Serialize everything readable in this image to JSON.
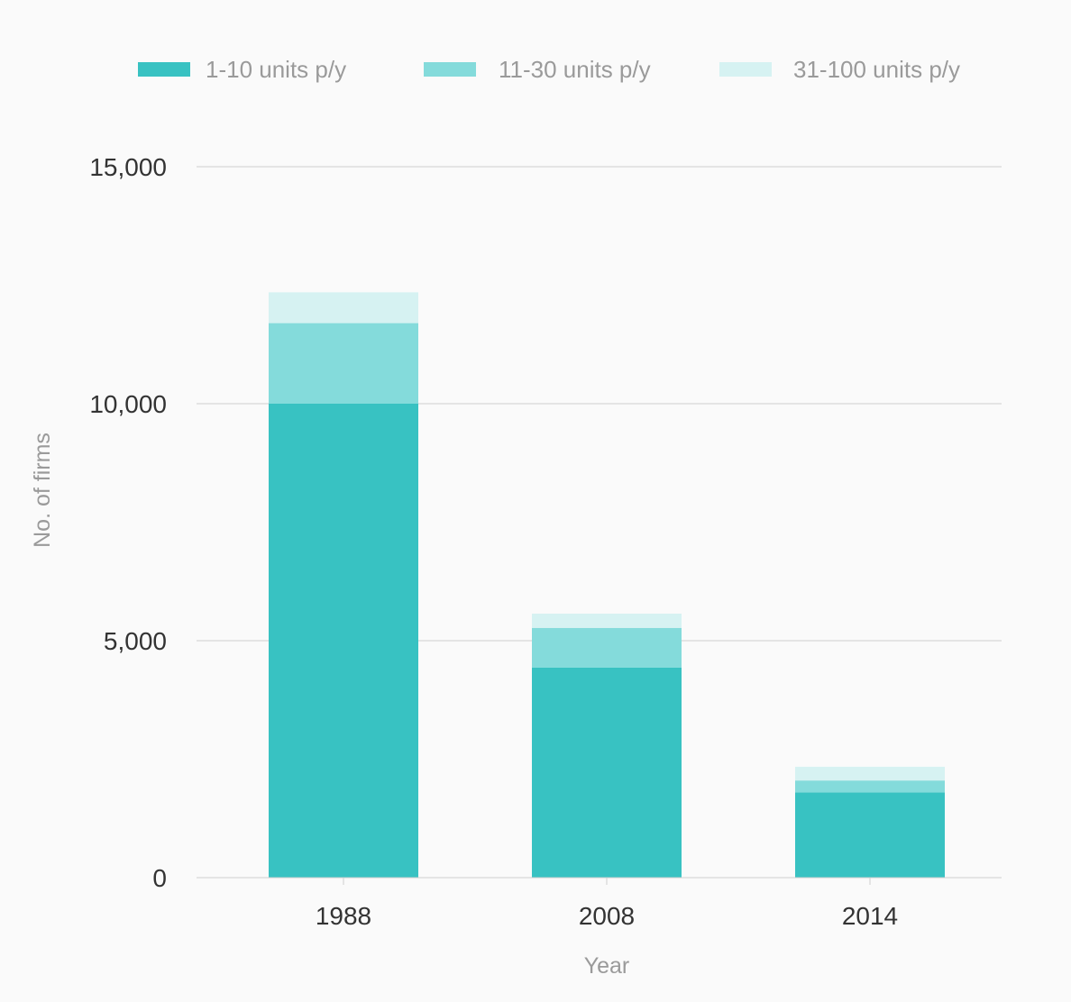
{
  "chart_data": {
    "type": "bar",
    "stacked": true,
    "title": "",
    "xlabel": "Year",
    "ylabel": "No. of firms",
    "ylim": [
      0,
      15000
    ],
    "yticks": [
      0,
      5000,
      10000,
      15000
    ],
    "ytick_labels": [
      "0",
      "5,000",
      "10,000",
      "15,000"
    ],
    "grid": true,
    "legend_position": "top",
    "categories": [
      "1988",
      "2008",
      "2014"
    ],
    "series": [
      {
        "name": "1-10 units p/y",
        "color": "#38c2c2",
        "values": [
          10000,
          4430,
          1800
        ]
      },
      {
        "name": "11-30 units p/y",
        "color": "#84dbdb",
        "values": [
          1700,
          840,
          250
        ]
      },
      {
        "name": "31-100 units p/y",
        "color": "#d6f2f2",
        "values": [
          650,
          300,
          290
        ]
      }
    ]
  }
}
